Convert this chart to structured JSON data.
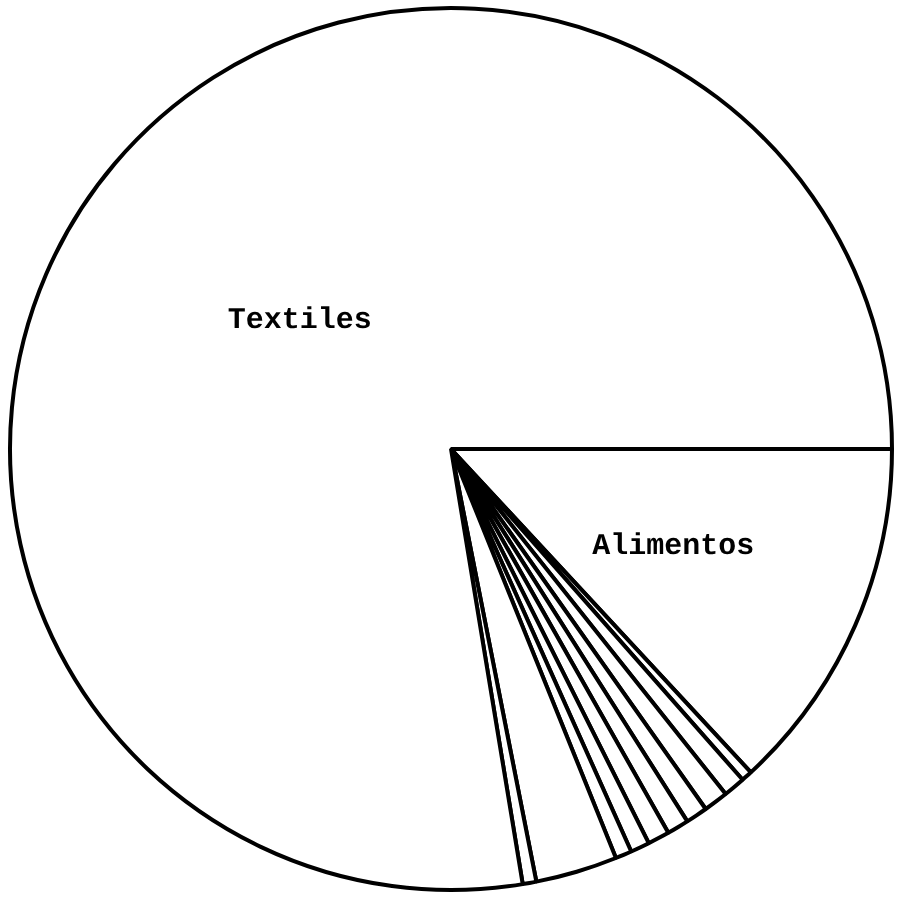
{
  "chart_data": {
    "type": "pie",
    "categories": [
      "Alimentos",
      null,
      null,
      null,
      null,
      null,
      null,
      null,
      null,
      null,
      null,
      "Textiles"
    ],
    "values": [
      13.1,
      0.4,
      0.8,
      0.9,
      0.8,
      0.8,
      0.8,
      0.7,
      0.6,
      3.0,
      0.5,
      77.6
    ],
    "colors": [
      "#ffffff",
      "#ffffff",
      "#ffffff",
      "#ffffff",
      "#ffffff",
      "#ffffff",
      "#ffffff",
      "#ffffff",
      "#ffffff",
      "#ffffff",
      "#ffffff",
      "#ffffff"
    ],
    "legend": false
  }
}
